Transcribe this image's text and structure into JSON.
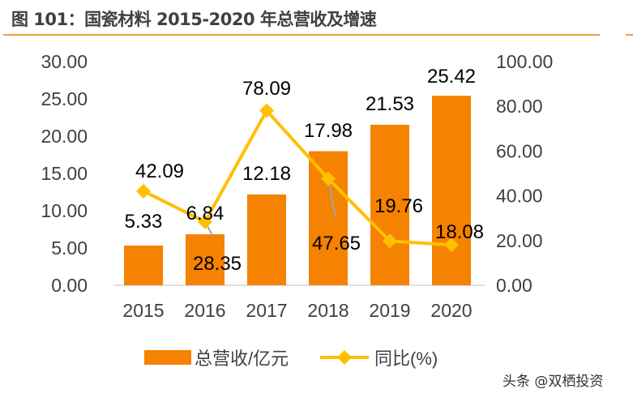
{
  "title": "图 101：国瓷材料 2015-2020 年总营收及增速",
  "watermark": "头条 @双栖投资",
  "chart_data": {
    "type": "bar+line",
    "categories": [
      "2015",
      "2016",
      "2017",
      "2018",
      "2019",
      "2020"
    ],
    "series": [
      {
        "name": "总营收/亿元",
        "type": "bar",
        "axis": "left",
        "color": "#F58200",
        "values": [
          5.33,
          6.84,
          12.18,
          17.98,
          21.53,
          25.42
        ]
      },
      {
        "name": "同比(%)",
        "type": "line",
        "axis": "right",
        "color": "#FFC000",
        "marker": "diamond",
        "values": [
          42.09,
          28.35,
          78.09,
          47.65,
          19.76,
          18.08
        ]
      }
    ],
    "left_axis": {
      "ylim": [
        0,
        30
      ],
      "ticks": [
        "0.00",
        "5.00",
        "10.00",
        "15.00",
        "20.00",
        "25.00",
        "30.00"
      ]
    },
    "right_axis": {
      "ylim": [
        0,
        100
      ],
      "ticks": [
        "0.00",
        "20.00",
        "40.00",
        "60.00",
        "80.00",
        "100.00"
      ]
    },
    "bar_labels": [
      "5.33",
      "6.84",
      "12.18",
      "17.98",
      "21.53",
      "25.42"
    ],
    "line_labels": [
      "42.09",
      "28.35",
      "78.09",
      "47.65",
      "19.76",
      "18.08"
    ],
    "grid": false,
    "legend": {
      "placement": "bottom",
      "items": [
        "总营收/亿元",
        "同比(%)"
      ]
    }
  }
}
